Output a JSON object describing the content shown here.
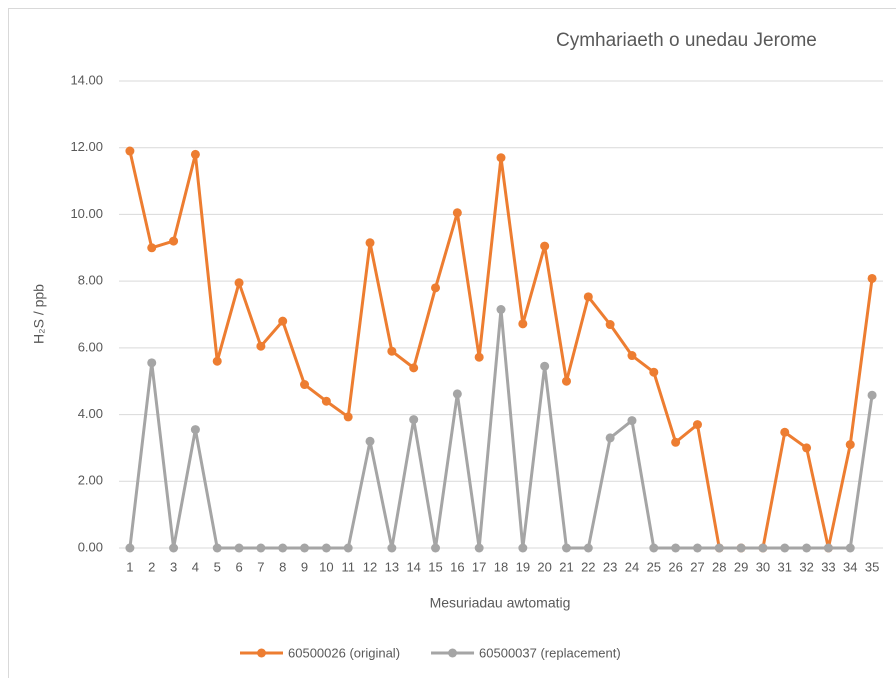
{
  "chart_data": {
    "type": "line",
    "title": "Cymhariaeth o unedau Jerome",
    "x_label": "Mesuriadau awtomatig",
    "y_label": "H₂S / ppb",
    "categories": [
      "1",
      "2",
      "3",
      "4",
      "5",
      "6",
      "7",
      "8",
      "9",
      "10",
      "11",
      "12",
      "13",
      "14",
      "15",
      "16",
      "17",
      "18",
      "19",
      "20",
      "21",
      "22",
      "23",
      "24",
      "25",
      "26",
      "27",
      "28",
      "29",
      "30",
      "31",
      "32",
      "33",
      "34",
      "35"
    ],
    "series": [
      {
        "name": "60500026 (original)",
        "color": "#ed7d31",
        "values": [
          11.9,
          9.0,
          9.2,
          11.8,
          5.6,
          7.95,
          6.05,
          6.8,
          4.9,
          4.4,
          3.93,
          9.15,
          5.9,
          5.4,
          7.8,
          10.05,
          5.72,
          11.7,
          6.72,
          9.05,
          5.0,
          7.53,
          6.7,
          5.77,
          5.27,
          3.17,
          3.7,
          0,
          0,
          0,
          3.47,
          3.0,
          0,
          3.1,
          8.08
        ]
      },
      {
        "name": "60500037 (replacement)",
        "color": "#a5a5a5",
        "values": [
          0,
          5.55,
          0,
          3.55,
          0,
          0,
          0,
          0,
          0,
          0,
          0,
          3.2,
          0,
          3.85,
          0,
          4.62,
          0,
          7.15,
          0,
          5.45,
          0,
          0,
          3.3,
          3.82,
          0,
          0,
          0,
          0,
          0,
          0,
          0,
          0,
          0,
          0,
          4.58
        ]
      }
    ],
    "ylim": [
      0,
      14
    ],
    "yticks": [
      {
        "value": 0,
        "label": "0.00"
      },
      {
        "value": 2,
        "label": "2.00"
      },
      {
        "value": 4,
        "label": "4.00"
      },
      {
        "value": 6,
        "label": "6.00"
      },
      {
        "value": 8,
        "label": "8.00"
      },
      {
        "value": 10,
        "label": "10.00"
      },
      {
        "value": 12,
        "label": "12.00"
      },
      {
        "value": 14,
        "label": "14.00"
      }
    ],
    "grid": true,
    "legend": "bottom"
  }
}
